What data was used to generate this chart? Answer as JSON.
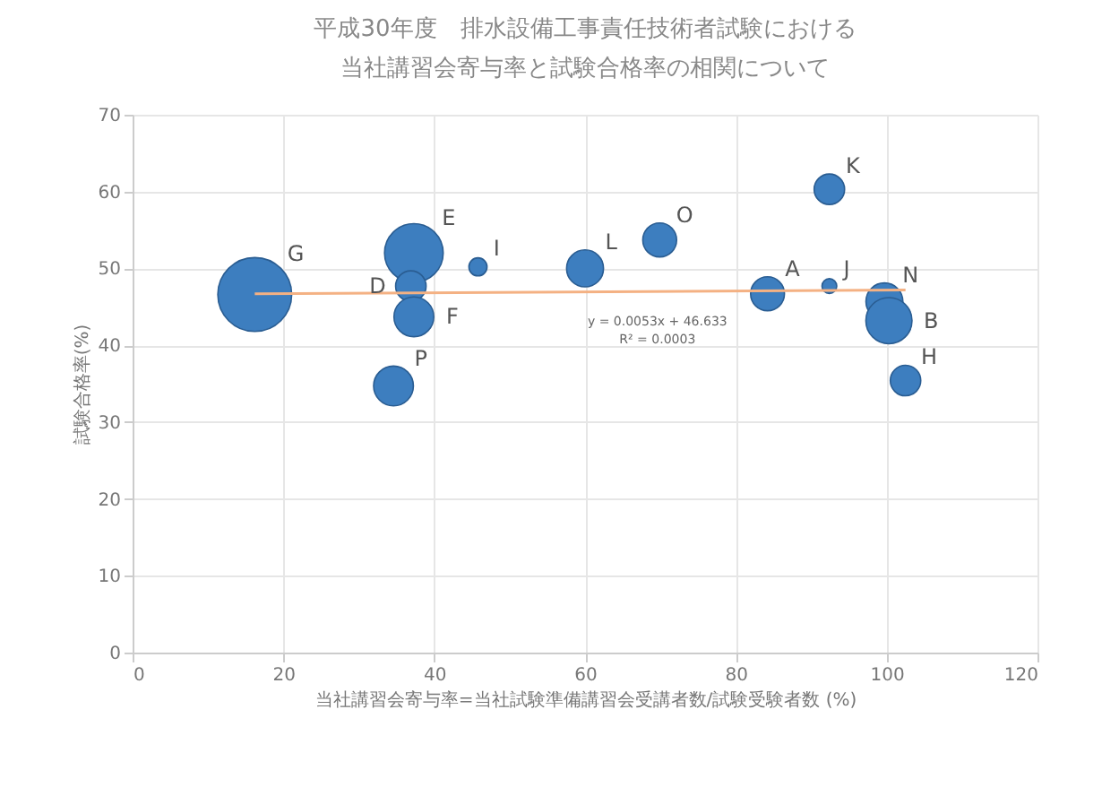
{
  "chart_data": {
    "type": "bubble",
    "title": [
      "平成30年度　排水設備工事責任技術者試験における",
      "当社講習会寄与率と試験合格率の相関について"
    ],
    "xlabel": "当社講習会寄与率=当社試験準備講習会受講者数/試験受験者数 (%)",
    "ylabel": "試験合格率(%)",
    "series": [
      {
        "color": "#3d7ebf",
        "x": [
          16.2,
          37.3,
          36.9,
          37.3,
          45.8,
          34.6,
          60.0,
          69.9,
          84.2,
          92.4,
          92.4,
          99.7,
          100.3,
          102.5
        ],
        "values": [
          46.6,
          52.0,
          47.7,
          43.7,
          50.2,
          34.7,
          50.0,
          53.7,
          46.7,
          60.3,
          47.7,
          45.7,
          43.2,
          35.4
        ],
        "sizes": [
          1,
          0.63,
          0.17,
          0.29,
          0.06,
          0.29,
          0.25,
          0.21,
          0.21,
          0.17,
          0.04,
          0.25,
          0.39,
          0.17
        ]
      },
      {
        "type": "line",
        "color": "#f4b183",
        "x": [
          16.2,
          102.5
        ],
        "values": [
          46.7,
          47.2
        ]
      }
    ],
    "annotations": [
      {
        "text": "G",
        "x": 16.2,
        "y": 46.6
      },
      {
        "text": "E",
        "x": 37.3,
        "y": 52.0
      },
      {
        "text": "D",
        "x": 36.9,
        "y": 47.7
      },
      {
        "text": "F",
        "x": 37.3,
        "y": 43.7
      },
      {
        "text": "I",
        "x": 45.8,
        "y": 50.2
      },
      {
        "text": "P",
        "x": 34.6,
        "y": 34.7
      },
      {
        "text": "L",
        "x": 60.0,
        "y": 50.0
      },
      {
        "text": "O",
        "x": 69.9,
        "y": 53.7
      },
      {
        "text": "A",
        "x": 84.2,
        "y": 46.7
      },
      {
        "text": "K",
        "x": 92.4,
        "y": 60.3
      },
      {
        "text": "J",
        "x": 92.4,
        "y": 47.7
      },
      {
        "text": "N",
        "x": 99.7,
        "y": 45.7
      },
      {
        "text": "B",
        "x": 100.3,
        "y": 43.2
      },
      {
        "text": "H",
        "x": 102.5,
        "y": 35.4
      },
      "y = 0.0053x + 46.633",
      "R² = 0.0003"
    ],
    "xlim": [
      0,
      120
    ],
    "xticks": [
      0,
      20,
      40,
      60,
      80,
      100,
      120
    ],
    "ylim": [
      0,
      70
    ],
    "yticks": [
      0,
      10,
      20,
      30,
      40,
      50,
      60,
      70
    ],
    "grid": true
  }
}
